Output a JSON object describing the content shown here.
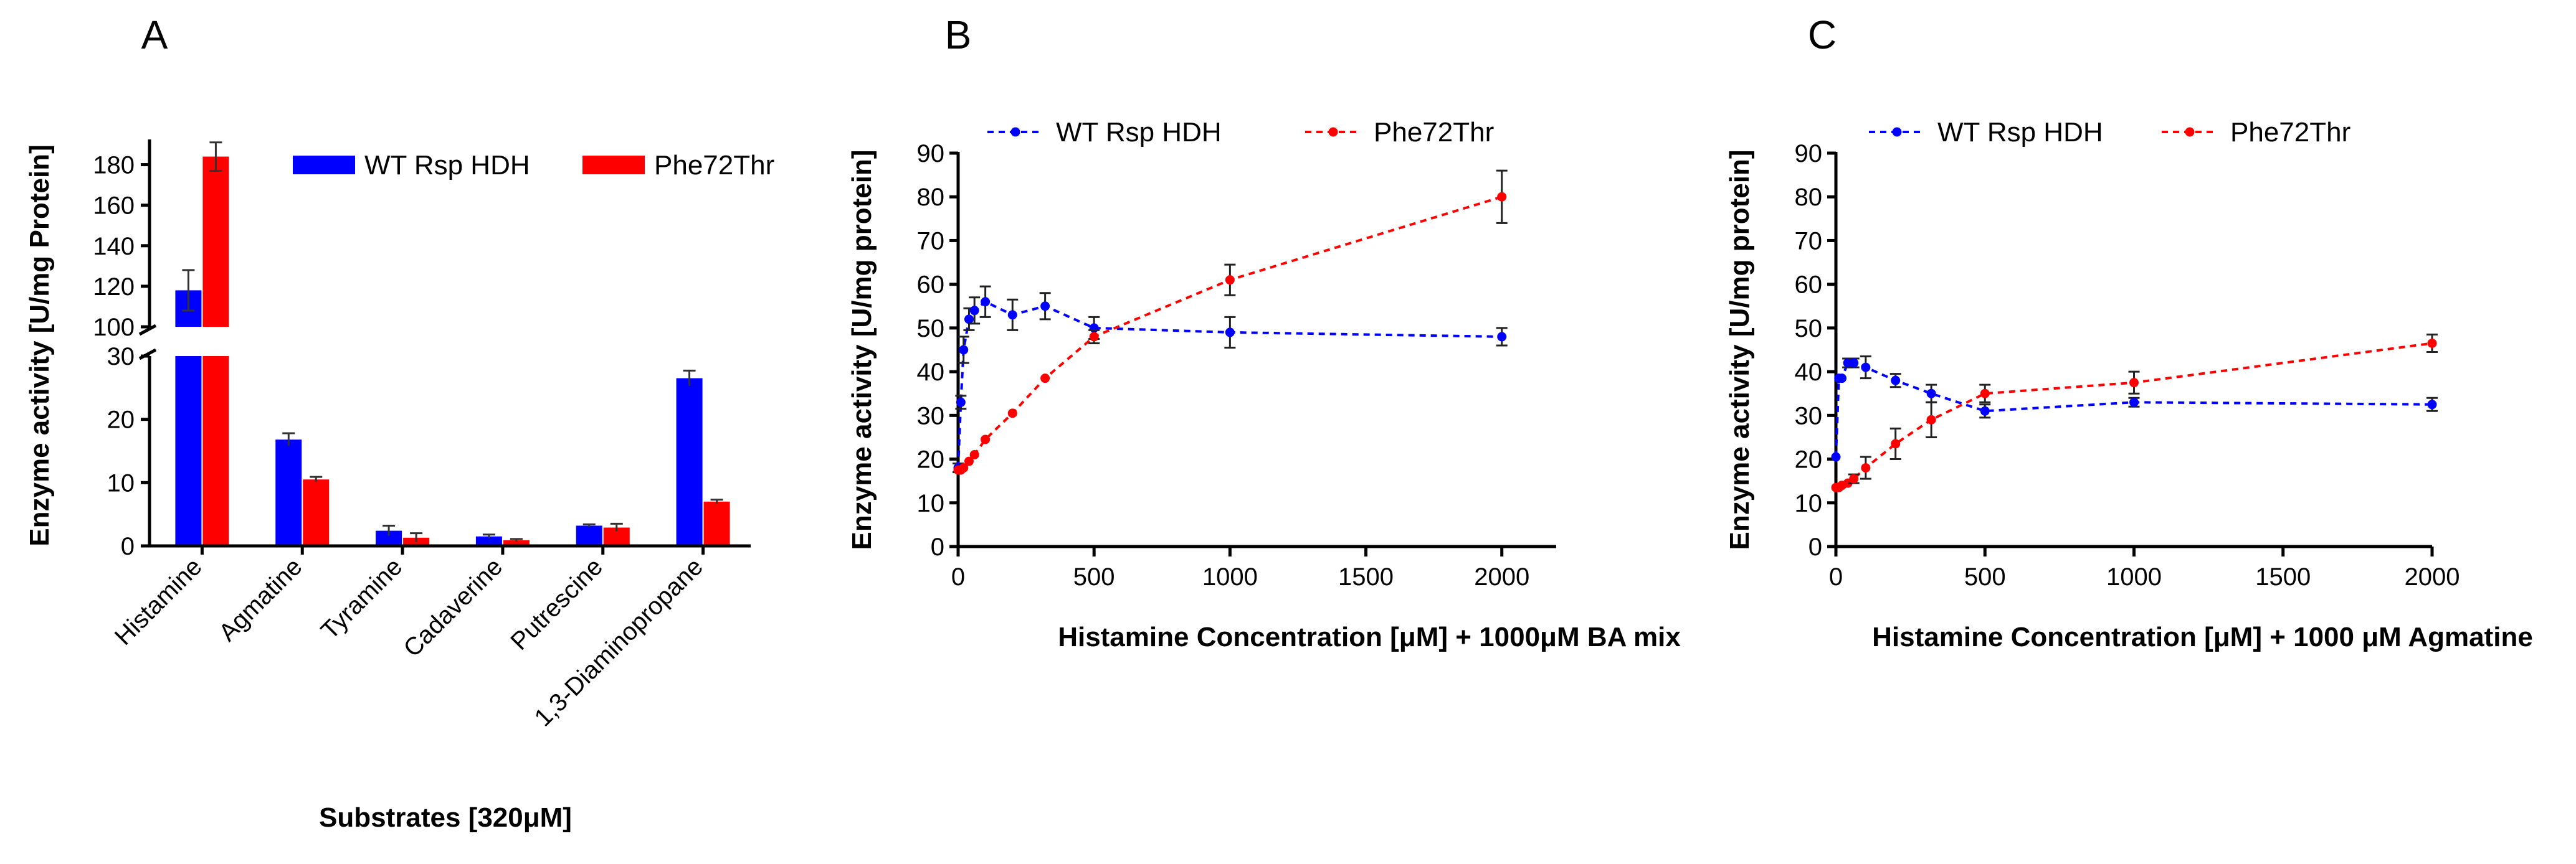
{
  "chart_data": [
    {
      "panel": "A",
      "type": "bar",
      "title": "",
      "xlabel": "Substrates [320μM]",
      "ylabel": "Enzyme activity [U/mg Protein]",
      "categories": [
        "Histamine",
        "Agmatine",
        "Tyramine",
        "Cadaverine",
        "Putrescine",
        "1,3-Diaminopropane"
      ],
      "series": [
        {
          "name": "WT Rsp HDH",
          "color": "#0000ff",
          "values": [
            118,
            16.8,
            2.4,
            1.5,
            3.2,
            26.5
          ],
          "errors": [
            10,
            1.0,
            0.8,
            0.3,
            0.2,
            1.2
          ]
        },
        {
          "name": "Phe72Thr",
          "color": "#ff0000",
          "values": [
            184,
            10.5,
            1.3,
            0.9,
            2.9,
            7.0
          ],
          "errors": [
            7,
            0.4,
            0.7,
            0.2,
            0.6,
            0.3
          ]
        }
      ],
      "axis_break": {
        "lower": [
          0,
          30
        ],
        "upper": [
          100,
          190
        ]
      },
      "yticks_lower": [
        "0",
        "10",
        "20",
        "30"
      ],
      "yticks_upper": [
        "100",
        "120",
        "140",
        "160",
        "180"
      ],
      "legend": "top-right"
    },
    {
      "panel": "B",
      "type": "line",
      "title": "",
      "xlabel": "Histamine Concentration [μM] + 1000μM BA mix",
      "ylabel": "Enzyme activity [U/mg protein]",
      "xlim": [
        0,
        2200
      ],
      "ylim": [
        0,
        90
      ],
      "xticks": [
        "0",
        "500",
        "1000",
        "1500",
        "2000"
      ],
      "yticks": [
        "0",
        "10",
        "20",
        "30",
        "40",
        "50",
        "60",
        "70",
        "80",
        "90"
      ],
      "series": [
        {
          "name": "WT Rsp HDH",
          "color": "#0000ff",
          "x": [
            0,
            10,
            20,
            40,
            60,
            100,
            200,
            320,
            500,
            1000,
            2000
          ],
          "y": [
            18,
            33,
            45,
            52,
            54,
            56,
            53,
            55,
            50,
            49,
            48
          ],
          "err": [
            1,
            1.5,
            3,
            2.5,
            3,
            3.5,
            3.5,
            3,
            2.5,
            3.5,
            2
          ]
        },
        {
          "name": "Phe72Thr",
          "color": "#ff0000",
          "x": [
            0,
            10,
            20,
            40,
            60,
            100,
            200,
            320,
            500,
            1000,
            2000
          ],
          "y": [
            17.5,
            17.5,
            18,
            19.5,
            21,
            24.5,
            30.5,
            38.5,
            48,
            61,
            80
          ],
          "err": [
            0.5,
            0.5,
            0.5,
            0.5,
            0.5,
            0.5,
            0.5,
            0.5,
            1.5,
            3.5,
            6
          ]
        }
      ],
      "legend": "top"
    },
    {
      "panel": "C",
      "type": "line",
      "title": "",
      "xlabel": "Histamine Concentration [μM] + 1000 μM Agmatine",
      "ylabel": "Enzyme activity [U/mg protein]",
      "xlim": [
        0,
        2000
      ],
      "ylim": [
        0,
        90
      ],
      "xticks": [
        "0",
        "500",
        "1000",
        "1500",
        "2000"
      ],
      "yticks": [
        "0",
        "10",
        "20",
        "30",
        "40",
        "50",
        "60",
        "70",
        "80",
        "90"
      ],
      "series": [
        {
          "name": "WT Rsp HDH",
          "color": "#0000ff",
          "x": [
            0,
            10,
            20,
            40,
            60,
            100,
            200,
            320,
            500,
            1000,
            2000
          ],
          "y": [
            20.5,
            38.5,
            38.5,
            42,
            42,
            41,
            38,
            35,
            31,
            33,
            32.5
          ],
          "err": [
            0.5,
            0.5,
            0.5,
            1,
            1,
            2.5,
            1.5,
            2,
            1.5,
            1,
            1.5
          ]
        },
        {
          "name": "Phe72Thr",
          "color": "#ff0000",
          "x": [
            0,
            10,
            20,
            40,
            60,
            100,
            200,
            320,
            500,
            1000,
            2000
          ],
          "y": [
            13.5,
            13.5,
            14,
            14.5,
            15.5,
            18,
            23.5,
            29,
            35,
            37.5,
            46.5
          ],
          "err": [
            0.5,
            0.5,
            0.5,
            0.5,
            1,
            2.5,
            3.5,
            4,
            2,
            2.5,
            2
          ]
        }
      ],
      "legend": "top"
    }
  ]
}
